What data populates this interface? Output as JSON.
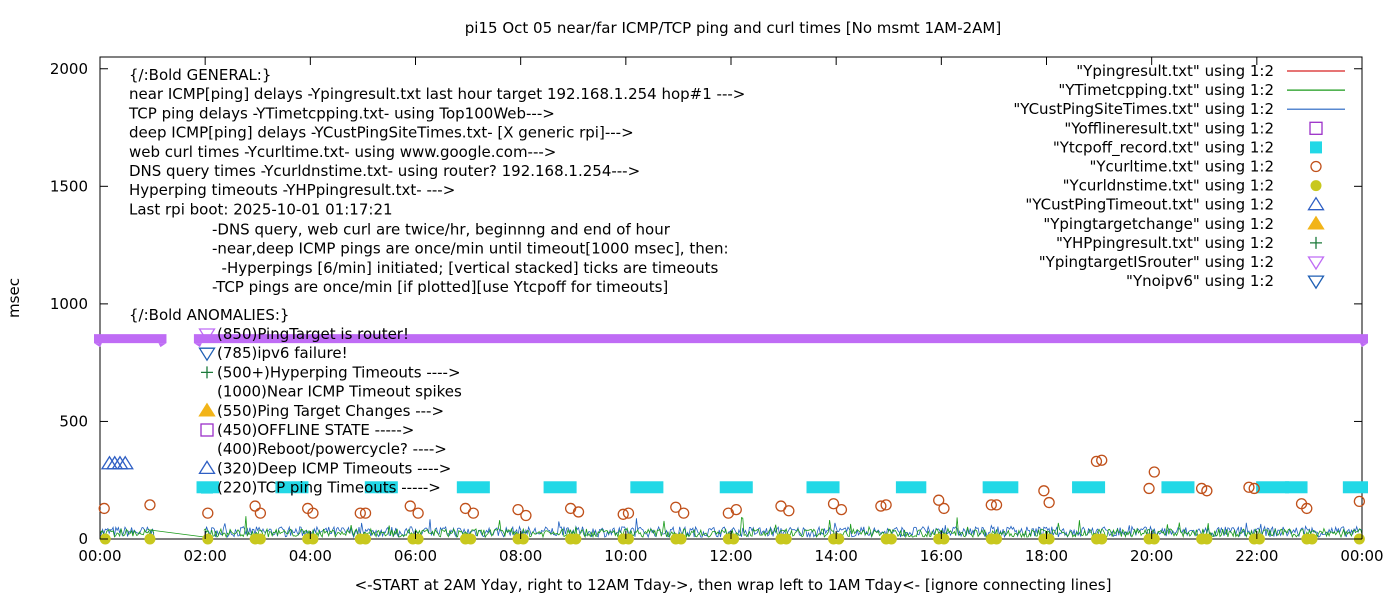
{
  "chart_data": {
    "type": "line",
    "title": "pi15 Oct 05  near/far ICMP/TCP ping and curl times [No msmt 1AM-2AM]",
    "xlabel": "<-START at 2AM Yday, right to 12AM Tday->, then wrap left to 1AM Tday<- [ignore connecting lines]",
    "ylabel": "msec",
    "xlim": [
      0,
      24
    ],
    "ylim": [
      0,
      2050
    ],
    "grid": false,
    "legend_position": "top-right",
    "x_tick_labels": [
      "00:00",
      "02:00",
      "04:00",
      "06:00",
      "08:00",
      "10:00",
      "12:00",
      "14:00",
      "16:00",
      "18:00",
      "20:00",
      "22:00",
      "00:00"
    ],
    "x_tick_values": [
      0,
      2,
      4,
      6,
      8,
      10,
      12,
      14,
      16,
      18,
      20,
      22,
      24
    ],
    "y_tick_values": [
      0,
      500,
      1000,
      1500,
      2000
    ],
    "annotations": {
      "general": [
        "{/:Bold GENERAL:}",
        "near ICMP[ping] delays -Ypingresult.txt last hour target 192.168.1.254 hop#1 --->",
        "TCP ping delays -YTimetcpping.txt- using Top100Web--->",
        "deep ICMP[ping] delays -YCustPingSiteTimes.txt- [X generic rpi]--->",
        "web curl times -Ycurltime.txt- using www.google.com--->",
        "DNS query times -Ycurldnstime.txt- using router? 192.168.1.254--->",
        "Hyperping timeouts -YHPpingresult.txt- --->",
        "Last rpi boot: 2025-10-01 01:17:21"
      ],
      "notes": [
        "-DNS query, web curl are twice/hr, beginnng and end of hour",
        "-near,deep ICMP pings are once/min until timeout[1000 msec], then:",
        "  -Hyperpings [6/min] initiated; [vertical stacked] ticks are timeouts",
        "-TCP pings are once/min [if plotted][use Ytcpoff for timeouts]"
      ],
      "anomalies_header": "{/:Bold ANOMALIES:}",
      "anomalies": [
        {
          "text": "(850)PingTarget is router!",
          "marker": "inverted-triangle-open",
          "color": "#bf6cf5"
        },
        {
          "text": "(785)ipv6 failure!",
          "marker": "inverted-triangle-open",
          "color": "#1f5fb4"
        },
        {
          "text": "(500+)Hyperping Timeouts ---->",
          "marker": "plus",
          "color": "#1b7a3a"
        },
        {
          "text": "(1000)Near ICMP Timeout spikes",
          "marker": "",
          "color": ""
        },
        {
          "text": "(550)Ping Target Changes --->",
          "marker": "triangle-filled",
          "color": "#f2b418"
        },
        {
          "text": "(450)OFFLINE STATE ----->",
          "marker": "square-open",
          "color": "#9b30c8"
        },
        {
          "text": "(400)Reboot/powercycle? ---->",
          "marker": "",
          "color": ""
        },
        {
          "text": "(320)Deep ICMP Timeouts ---->",
          "marker": "triangle-open",
          "color": "#2f5fc4"
        },
        {
          "text": "(220)TCP ping Timeouts ----->",
          "marker": "square-filled",
          "color": "#22d8e6"
        }
      ]
    },
    "series": [
      {
        "name": "\"Ypingresult.txt\" using 1:2",
        "color": "#d62020",
        "style": "line",
        "values": []
      },
      {
        "name": "\"YTimetcpping.txt\" using 1:2",
        "color": "#1a9a1a",
        "style": "line",
        "values_description": "noise 0-100 msec with spikes"
      },
      {
        "name": "\"YCustPingSiteTimes.txt\" using 1:2",
        "color": "#2060c0",
        "style": "line",
        "values_description": "noise 0-70 msec"
      },
      {
        "name": "\"Yofflineresult.txt\" using 1:2",
        "color": "#9b30c8",
        "style": "square-open",
        "values": []
      },
      {
        "name": "\"Ytcpoff_record.txt\" using 1:2",
        "color": "#22d8e6",
        "style": "square-filled",
        "segments": [
          [
            1.95,
            2.15
          ],
          [
            3.45,
            3.85
          ],
          [
            5.15,
            5.55
          ],
          [
            6.9,
            7.3
          ],
          [
            8.55,
            8.95
          ],
          [
            10.2,
            10.6
          ],
          [
            11.9,
            12.3
          ],
          [
            13.55,
            13.95
          ],
          [
            15.25,
            15.6
          ],
          [
            16.9,
            17.35
          ],
          [
            18.6,
            19.0
          ],
          [
            20.3,
            20.7
          ],
          [
            22.1,
            22.5
          ],
          [
            22.65,
            22.85
          ],
          [
            23.75,
            24.0
          ]
        ],
        "y": 220
      },
      {
        "name": "\"Ycurltime.txt\" using 1:2",
        "color": "#c0501a",
        "style": "circle-open",
        "points": [
          [
            0.08,
            130
          ],
          [
            0.95,
            145
          ],
          [
            2.05,
            110
          ],
          [
            2.95,
            140
          ],
          [
            3.05,
            110
          ],
          [
            3.95,
            130
          ],
          [
            4.05,
            110
          ],
          [
            4.95,
            110
          ],
          [
            5.05,
            110
          ],
          [
            5.9,
            140
          ],
          [
            6.05,
            110
          ],
          [
            6.95,
            130
          ],
          [
            7.1,
            110
          ],
          [
            7.95,
            125
          ],
          [
            8.1,
            100
          ],
          [
            8.95,
            130
          ],
          [
            9.1,
            115
          ],
          [
            9.95,
            105
          ],
          [
            10.05,
            110
          ],
          [
            10.95,
            135
          ],
          [
            11.1,
            110
          ],
          [
            11.95,
            110
          ],
          [
            12.1,
            125
          ],
          [
            12.95,
            140
          ],
          [
            13.1,
            120
          ],
          [
            13.95,
            150
          ],
          [
            14.1,
            125
          ],
          [
            14.85,
            140
          ],
          [
            14.95,
            145
          ],
          [
            15.95,
            165
          ],
          [
            16.05,
            130
          ],
          [
            16.95,
            145
          ],
          [
            17.05,
            145
          ],
          [
            17.95,
            205
          ],
          [
            18.05,
            155
          ],
          [
            18.95,
            330
          ],
          [
            19.05,
            335
          ],
          [
            19.95,
            215
          ],
          [
            20.05,
            285
          ],
          [
            20.95,
            215
          ],
          [
            21.05,
            205
          ],
          [
            21.85,
            220
          ],
          [
            21.95,
            215
          ],
          [
            22.85,
            150
          ],
          [
            22.95,
            130
          ],
          [
            23.95,
            160
          ]
        ]
      },
      {
        "name": "\"Ycurldnstime.txt\" using 1:2",
        "color": "#c8c81e",
        "style": "circle-filled",
        "y": 0,
        "x_positions": [
          0.1,
          0.95,
          2.05,
          2.95,
          3.05,
          3.95,
          4.05,
          4.95,
          5.05,
          5.95,
          6.05,
          6.95,
          7.05,
          7.95,
          8.05,
          8.95,
          9.05,
          9.95,
          10.05,
          10.95,
          11.05,
          11.95,
          12.05,
          12.95,
          13.05,
          13.95,
          14.05,
          14.95,
          15.05,
          15.95,
          16.05,
          16.95,
          17.05,
          17.95,
          18.05,
          18.95,
          19.05,
          19.95,
          20.05,
          20.95,
          21.05,
          21.95,
          22.05,
          22.95,
          23.05,
          23.95
        ]
      },
      {
        "name": "\"YCustPingTimeout.txt\" using 1:2",
        "color": "#2f5fc4",
        "style": "triangle-open",
        "points": [
          [
            0.18,
            320
          ],
          [
            0.28,
            320
          ],
          [
            0.38,
            320
          ],
          [
            0.48,
            320
          ]
        ]
      },
      {
        "name": "\"Ypingtargetchange\" using 1:2",
        "color": "#f2b418",
        "style": "triangle-filled",
        "values": []
      },
      {
        "name": "\"YHPpingresult.txt\" using 1:2",
        "color": "#1b7a3a",
        "style": "plus",
        "values": []
      },
      {
        "name": "\"YpingtargetISrouter\" using 1:2",
        "color": "#bf6cf5",
        "style": "inverted-triangle-open",
        "y": 850,
        "ranges": [
          [
            0,
            1.15
          ],
          [
            1.9,
            24
          ]
        ]
      },
      {
        "name": "\"Ynoipv6\" using 1:2",
        "color": "#1f5fb4",
        "style": "inverted-triangle-open",
        "values": []
      }
    ]
  }
}
